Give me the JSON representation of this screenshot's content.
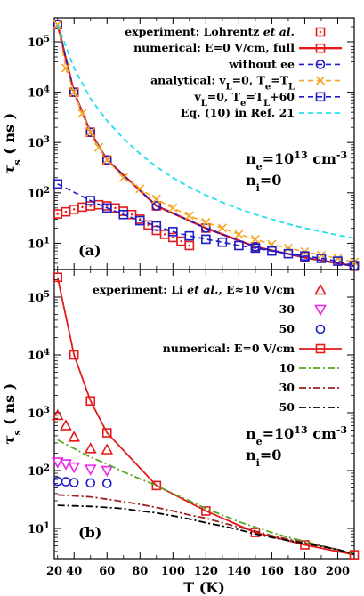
{
  "chart_data": {
    "type": "line",
    "xlabel": "T (K)",
    "x_ticks": [
      "20",
      "40",
      "60",
      "80",
      "100",
      "120",
      "140",
      "160",
      "180",
      "200"
    ],
    "panels": [
      {
        "label": "(a)",
        "ylabel": "τs ( ns )",
        "ylim": [
          3,
          300000
        ],
        "xlim": [
          28,
          210
        ],
        "yscale": "log",
        "y_ticks": [
          {
            "v": 10,
            "t": "10"
          },
          {
            "v": 100,
            "t": "10"
          },
          {
            "v": 1000,
            "t": "10"
          },
          {
            "v": 10000,
            "t": "10"
          },
          {
            "v": 100000,
            "t": "10"
          }
        ],
        "y_tick_exps": [
          "1",
          "2",
          "3",
          "4",
          "5"
        ],
        "annotation": {
          "line1_base": "n",
          "line1_sub": "e",
          "line1_rest": "=10",
          "line1_sup": "13",
          "line1_unit": " cm",
          "line1_unit_sup": "-3",
          "line2_base": "n",
          "line2_sub": "i",
          "line2_rest": "=0"
        },
        "series": [
          {
            "name": "experiment: Lohrentz et al.",
            "legend_parts": [
              "experiment: Lohrentz ",
              "et al."
            ],
            "color": "#e41a1c",
            "style": "markers",
            "marker": "square-dot",
            "x": [
              30,
              35,
              40,
              45,
              50,
              55,
              60,
              65,
              70,
              75,
              80,
              85,
              90,
              95,
              100,
              105,
              110
            ],
            "y": [
              38,
              42,
              47,
              52,
              55,
              58,
              55,
              50,
              43,
              37,
              30,
              23,
              18,
              15,
              13,
              11,
              9
            ]
          },
          {
            "name": "numerical: E=0 V/cm, full",
            "color": "#e41a1c",
            "style": "solid",
            "marker": "square",
            "width": 2.4,
            "x": [
              30,
              40,
              50,
              60,
              90,
              120,
              150,
              180,
              210
            ],
            "y": [
              220000,
              10000,
              1600,
              450,
              55,
              20,
              8.5,
              5.2,
              3.5
            ]
          },
          {
            "name": "without ee",
            "color": "#1c1cc8",
            "style": "dashed",
            "marker": "circle",
            "width": 1.6,
            "x": [
              30,
              40,
              50,
              60,
              90,
              120,
              150,
              180,
              210
            ],
            "y": [
              220000,
              10000,
              1600,
              450,
              55,
              20,
              8.5,
              5.2,
              3.5
            ]
          },
          {
            "name": "analytical: vL=0, Te=TL",
            "legend_math": [
              [
                "analytical: v",
                ""
              ],
              [
                "L",
                "sub"
              ],
              [
                "=0, T",
                ""
              ],
              [
                "e",
                "sub"
              ],
              [
                "=T",
                ""
              ],
              [
                "L",
                "sub"
              ]
            ],
            "color": "#f5a623",
            "style": "dashed",
            "marker": "x",
            "width": 1.6,
            "x": [
              30,
              35,
              40,
              45,
              50,
              55,
              60,
              70,
              80,
              90,
              100,
              110,
              120,
              130,
              140,
              150,
              160,
              170,
              180,
              190,
              200,
              210
            ],
            "y": [
              220000,
              30000,
              10000,
              3800,
              1600,
              800,
              450,
              200,
              120,
              75,
              50,
              35,
              26,
              20,
              15,
              12,
              9.5,
              8,
              6.8,
              5.8,
              5,
              4.2
            ]
          },
          {
            "name": "vL=0, Te=TL+60",
            "legend_math": [
              [
                "v",
                ""
              ],
              [
                "L",
                "sub"
              ],
              [
                "=0, T",
                ""
              ],
              [
                "e",
                "sub"
              ],
              [
                "=T",
                ""
              ],
              [
                "L",
                "sub"
              ],
              [
                "+60",
                ""
              ]
            ],
            "color": "#1c1cc8",
            "style": "dashed",
            "marker": "square",
            "width": 1.6,
            "x": [
              30,
              50,
              60,
              70,
              80,
              90,
              100,
              110,
              120,
              130,
              140,
              150,
              160,
              170,
              180,
              190,
              200,
              210
            ],
            "y": [
              150,
              70,
              50,
              37,
              28,
              22,
              17,
              14,
              12,
              10.5,
              9,
              8,
              7,
              6.2,
              5.6,
              5,
              4.4,
              3.6
            ]
          },
          {
            "name": "Eq. (10) in Ref. 21",
            "color": "#22ddee",
            "style": "dashed",
            "marker": "none",
            "width": 1.8,
            "x": [
              30,
              40,
              50,
              60,
              70,
              80,
              90,
              100,
              110,
              120,
              130,
              140,
              150,
              160,
              170,
              180,
              190,
              200,
              210
            ],
            "y": [
              220000,
              30000,
              7500,
              2700,
              1200,
              600,
              330,
              200,
              130,
              90,
              65,
              48,
              37,
              30,
              24,
              20,
              17,
              14.5,
              12.5
            ]
          }
        ]
      },
      {
        "label": "(b)",
        "ylabel": "τs ( ns )",
        "ylim": [
          3,
          300000
        ],
        "xlim": [
          28,
          210
        ],
        "yscale": "log",
        "y_ticks": [
          {
            "v": 10,
            "t": "10"
          },
          {
            "v": 100,
            "t": "10"
          },
          {
            "v": 1000,
            "t": "10"
          },
          {
            "v": 10000,
            "t": "10"
          },
          {
            "v": 100000,
            "t": "10"
          }
        ],
        "y_tick_exps": [
          "1",
          "2",
          "3",
          "4",
          "5"
        ],
        "annotation": {
          "line1_base": "n",
          "line1_sub": "e",
          "line1_rest": "=10",
          "line1_sup": "13",
          "line1_unit": " cm",
          "line1_unit_sup": "-3",
          "line2_base": "n",
          "line2_sub": "i",
          "line2_rest": "=0"
        },
        "series": [
          {
            "name": "experiment: Li et al., E≈10 V/cm",
            "legend_parts": [
              "experiment: Li ",
              "et al.",
              ", E≈10 V/cm"
            ],
            "color": "#e41a1c",
            "style": "markers",
            "marker": "triangle-up",
            "x": [
              30,
              35,
              40,
              50,
              60
            ],
            "y": [
              900,
              600,
              380,
              240,
              230
            ]
          },
          {
            "name": "30",
            "color": "#ee22ee",
            "style": "markers",
            "marker": "triangle-down",
            "x": [
              30,
              35,
              40,
              50,
              60
            ],
            "y": [
              140,
              130,
              115,
              105,
              100
            ]
          },
          {
            "name": "50",
            "color": "#1c1cc8",
            "style": "markers",
            "marker": "circle",
            "x": [
              30,
              35,
              40,
              50,
              60
            ],
            "y": [
              65,
              64,
              62,
              61,
              60
            ]
          },
          {
            "name": "numerical: E=0 V/cm",
            "color": "#e41a1c",
            "style": "solid",
            "marker": "square",
            "width": 1.8,
            "x": [
              30,
              40,
              50,
              60,
              90,
              120,
              150,
              180,
              210
            ],
            "y": [
              220000,
              10000,
              1600,
              450,
              55,
              20,
              8.5,
              5.2,
              3.5
            ]
          },
          {
            "name": "10",
            "color": "#55aa22",
            "style": "dashdot",
            "marker": "none",
            "width": 1.8,
            "x": [
              30,
              40,
              50,
              60,
              70,
              80,
              90,
              100,
              110,
              120,
              130,
              140,
              150,
              160,
              170,
              180,
              190,
              200,
              210
            ],
            "y": [
              340,
              240,
              170,
              130,
              95,
              72,
              55,
              40,
              30,
              22,
              17,
              13,
              10.5,
              8.5,
              7,
              6,
              5,
              4.3,
              3.6
            ]
          },
          {
            "name": "30",
            "color": "#992222",
            "style": "dashdot",
            "marker": "none",
            "width": 1.8,
            "x": [
              30,
              40,
              50,
              60,
              70,
              80,
              90,
              100,
              110,
              120,
              130,
              140,
              150,
              160,
              170,
              180,
              190,
              200,
              210
            ],
            "y": [
              38,
              36.5,
              35,
              32,
              29,
              26,
              23,
              20,
              17,
              15,
              12.5,
              10.5,
              9,
              7.5,
              6.5,
              5.7,
              5,
              4.3,
              3.6
            ]
          },
          {
            "name": "50",
            "color": "#000000",
            "style": "dashdot",
            "marker": "none",
            "width": 1.8,
            "x": [
              30,
              40,
              50,
              60,
              70,
              80,
              90,
              100,
              110,
              120,
              130,
              140,
              150,
              160,
              170,
              180,
              190,
              200,
              210
            ],
            "y": [
              25,
              24.5,
              24,
              23,
              22,
              20,
              18.5,
              16.5,
              14.5,
              12.5,
              11,
              9.5,
              8,
              7,
              6.2,
              5.5,
              4.9,
              4.3,
              3.6
            ]
          }
        ]
      }
    ]
  }
}
